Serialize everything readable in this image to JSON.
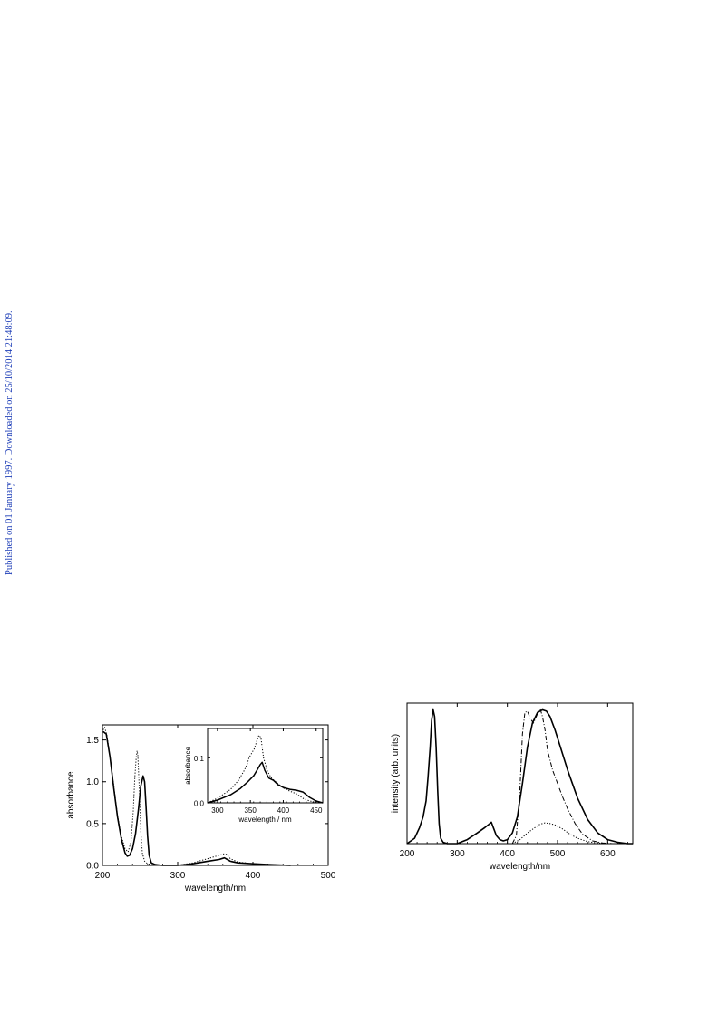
{
  "side_note": "Published on 01 January 1997. Downloaded on 25/10/2014 21:48:09.",
  "chart_data": [
    {
      "type": "line",
      "xlabel": "wavelength/nm",
      "ylabel": "absorbance",
      "xlim": [
        200,
        500
      ],
      "ylim": [
        0,
        1.68
      ],
      "xticks": [
        "200",
        "300",
        "400",
        "500"
      ],
      "yticks": [
        "0.0",
        "0.5",
        "1.0",
        "1.5"
      ],
      "series": [
        {
          "style": "solid",
          "x": [
            201,
            205,
            210,
            215,
            220,
            225,
            230,
            233,
            236,
            240,
            244,
            248,
            251,
            254,
            256,
            258,
            260,
            262,
            265,
            270,
            280,
            300,
            320,
            340,
            355,
            362,
            366,
            370,
            380,
            400,
            420,
            450
          ],
          "y": [
            1.6,
            1.57,
            1.3,
            0.92,
            0.58,
            0.32,
            0.15,
            0.11,
            0.12,
            0.2,
            0.38,
            0.68,
            0.95,
            1.07,
            1.0,
            0.7,
            0.35,
            0.12,
            0.03,
            0.01,
            0.0,
            0.0,
            0.02,
            0.05,
            0.07,
            0.09,
            0.07,
            0.05,
            0.03,
            0.02,
            0.01,
            0.0
          ]
        },
        {
          "style": "dotted",
          "x": [
            201,
            203,
            206,
            210,
            215,
            220,
            225,
            230,
            234,
            238,
            241,
            243,
            245,
            246,
            247,
            249,
            251,
            253,
            256,
            260,
            270,
            300,
            320,
            340,
            355,
            362,
            365,
            370,
            380,
            400,
            420,
            450
          ],
          "y": [
            1.62,
            1.65,
            1.55,
            1.3,
            0.95,
            0.6,
            0.35,
            0.2,
            0.16,
            0.28,
            0.65,
            1.05,
            1.3,
            1.37,
            1.32,
            0.9,
            0.4,
            0.15,
            0.05,
            0.02,
            0.0,
            0.0,
            0.03,
            0.08,
            0.12,
            0.14,
            0.13,
            0.08,
            0.04,
            0.02,
            0.01,
            0.0
          ]
        }
      ],
      "inset": {
        "xlabel": "wavelength / nm",
        "ylabel": "absorbance",
        "xlim": [
          285,
          460
        ],
        "ylim": [
          0,
          0.165
        ],
        "xticks": [
          "300",
          "350",
          "400",
          "450"
        ],
        "yticks": [
          "0.0",
          "0.1"
        ],
        "series": [
          {
            "style": "solid",
            "x": [
              285,
              300,
              320,
              335,
              345,
              355,
              360,
              365,
              368,
              372,
              378,
              385,
              392,
              400,
              410,
              420,
              430,
              440,
              450,
              460
            ],
            "y": [
              0.0,
              0.006,
              0.018,
              0.032,
              0.045,
              0.06,
              0.072,
              0.085,
              0.09,
              0.072,
              0.055,
              0.05,
              0.04,
              0.034,
              0.03,
              0.028,
              0.024,
              0.012,
              0.004,
              0.0
            ]
          },
          {
            "style": "dotted",
            "x": [
              285,
              300,
              320,
              332,
              340,
              345,
              348,
              352,
              356,
              360,
              363,
              366,
              370,
              376,
              382,
              390,
              400,
              410,
              420,
              430,
              440,
              450,
              460
            ],
            "y": [
              0.0,
              0.01,
              0.03,
              0.05,
              0.07,
              0.085,
              0.1,
              0.11,
              0.12,
              0.138,
              0.15,
              0.145,
              0.1,
              0.07,
              0.055,
              0.045,
              0.033,
              0.026,
              0.02,
              0.01,
              0.004,
              0.001,
              0.0
            ]
          }
        ]
      }
    },
    {
      "type": "line",
      "xlabel": "wavelength/nm",
      "ylabel": "intensity (arb. units)",
      "xlim": [
        200,
        650
      ],
      "ylim": [
        0,
        1.05
      ],
      "xticks": [
        "200",
        "300",
        "400",
        "500",
        "600"
      ],
      "yticks": [],
      "series": [
        {
          "style": "solid",
          "x": [
            200,
            215,
            225,
            232,
            238,
            242,
            246,
            249,
            252,
            255,
            258,
            261,
            264,
            267,
            272,
            280,
            300,
            320,
            340,
            355,
            362,
            368,
            372,
            378,
            385,
            392,
            400,
            410,
            420,
            430,
            440,
            450,
            460,
            470,
            478,
            485,
            495,
            505,
            520,
            540,
            560,
            580,
            600,
            620,
            640,
            650
          ],
          "y": [
            0.0,
            0.04,
            0.12,
            0.2,
            0.32,
            0.5,
            0.72,
            0.92,
            1.0,
            0.95,
            0.72,
            0.4,
            0.15,
            0.04,
            0.01,
            0.0,
            0.0,
            0.03,
            0.08,
            0.12,
            0.14,
            0.16,
            0.12,
            0.06,
            0.03,
            0.02,
            0.03,
            0.08,
            0.2,
            0.45,
            0.72,
            0.9,
            0.98,
            1.0,
            0.99,
            0.95,
            0.85,
            0.73,
            0.55,
            0.34,
            0.18,
            0.08,
            0.03,
            0.01,
            0.0,
            0.0
          ]
        },
        {
          "style": "dashdot",
          "x": [
            410,
            418,
            425,
            430,
            435,
            440,
            445,
            452,
            460,
            466,
            470,
            475,
            480,
            490,
            500,
            510,
            520,
            535,
            550,
            570,
            590,
            610
          ],
          "y": [
            0.0,
            0.06,
            0.4,
            0.82,
            0.98,
            0.99,
            0.94,
            0.9,
            0.97,
            1.0,
            0.95,
            0.85,
            0.7,
            0.55,
            0.45,
            0.35,
            0.26,
            0.15,
            0.07,
            0.02,
            0.005,
            0.0
          ]
        },
        {
          "style": "dotted",
          "x": [
            410,
            425,
            440,
            455,
            465,
            475,
            485,
            495,
            510,
            525,
            540,
            560,
            580,
            600,
            620
          ],
          "y": [
            0.0,
            0.03,
            0.08,
            0.12,
            0.145,
            0.155,
            0.15,
            0.14,
            0.11,
            0.07,
            0.04,
            0.015,
            0.005,
            0.001,
            0.0
          ]
        }
      ]
    }
  ]
}
